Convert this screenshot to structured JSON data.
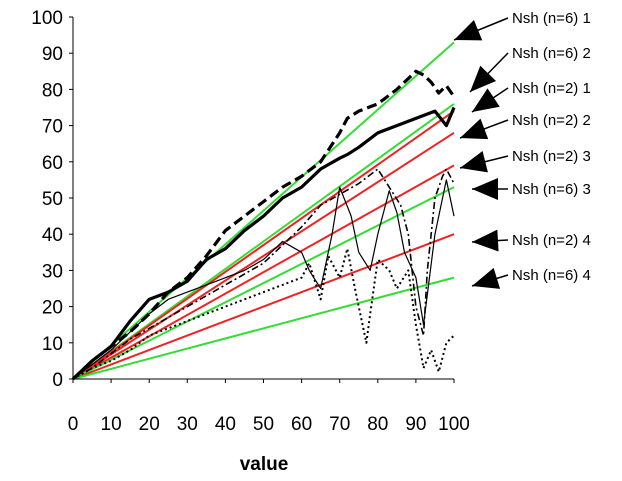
{
  "chart_data": {
    "type": "line",
    "title": "",
    "xlabel": "value",
    "ylabel": "",
    "xlim": [
      0,
      100
    ],
    "ylim": [
      0,
      100
    ],
    "xticks": [
      0,
      10,
      20,
      30,
      40,
      50,
      60,
      70,
      80,
      90,
      100
    ],
    "yticks": [
      0,
      10,
      20,
      30,
      40,
      50,
      60,
      70,
      80,
      90,
      100
    ],
    "grid": false,
    "colors": {
      "fit_green": "#33dd33",
      "fit_red": "#ee2222",
      "data": "#000000"
    },
    "fit_lines": [
      {
        "name": "Nsh (n=6) 1",
        "color": "fit_green",
        "slope": 0.93
      },
      {
        "name": "Nsh (n=6) 2",
        "color": "fit_green",
        "slope": 0.76
      },
      {
        "name": "Nsh (n=2) 1",
        "color": "fit_red",
        "slope": 0.74
      },
      {
        "name": "Nsh (n=2) 2",
        "color": "fit_red",
        "slope": 0.68
      },
      {
        "name": "Nsh (n=2) 3",
        "color": "fit_red",
        "slope": 0.59
      },
      {
        "name": "Nsh (n=6) 3",
        "color": "fit_green",
        "slope": 0.53
      },
      {
        "name": "Nsh (n=2) 4",
        "color": "fit_red",
        "slope": 0.4
      },
      {
        "name": "Nsh (n=6) 4",
        "color": "fit_green",
        "slope": 0.28
      }
    ],
    "series": [
      {
        "style": "thick-dash",
        "x": [
          0,
          5,
          10,
          15,
          20,
          25,
          30,
          35,
          40,
          45,
          50,
          55,
          60,
          65,
          70,
          72,
          75,
          80,
          85,
          88,
          90,
          92,
          94,
          96,
          98,
          100
        ],
        "y": [
          0,
          5,
          9,
          13,
          18,
          24,
          28,
          34,
          41,
          45,
          49,
          53,
          56,
          60,
          68,
          72,
          74,
          76,
          80,
          83,
          85,
          84,
          82,
          79,
          81,
          78
        ]
      },
      {
        "style": "thick-solid",
        "x": [
          0,
          5,
          10,
          15,
          20,
          25,
          30,
          35,
          40,
          45,
          50,
          55,
          60,
          65,
          70,
          72,
          75,
          80,
          85,
          90,
          95,
          98,
          100
        ],
        "y": [
          0,
          5,
          9,
          16,
          22,
          24,
          27,
          33,
          36,
          41,
          45,
          50,
          53,
          58,
          61,
          62,
          64,
          68,
          70,
          72,
          74,
          70,
          75
        ]
      },
      {
        "style": "thin-dashdot",
        "x": [
          0,
          5,
          10,
          15,
          20,
          25,
          30,
          35,
          40,
          45,
          50,
          55,
          60,
          65,
          70,
          75,
          80,
          83,
          86,
          88,
          90,
          92,
          93,
          95,
          97,
          98,
          100
        ],
        "y": [
          0,
          3,
          7,
          11,
          14,
          17,
          20,
          23,
          26,
          29,
          32,
          37,
          42,
          48,
          51,
          54,
          58,
          53,
          48,
          40,
          20,
          12,
          30,
          50,
          56,
          58,
          54
        ]
      },
      {
        "style": "thin-solid",
        "x": [
          0,
          5,
          10,
          15,
          20,
          25,
          30,
          35,
          40,
          45,
          50,
          55,
          60,
          62,
          65,
          68,
          70,
          73,
          75,
          78,
          80,
          83,
          85,
          87,
          90,
          92,
          95,
          98,
          100
        ],
        "y": [
          0,
          4,
          8,
          13,
          18,
          22,
          24,
          26,
          28,
          30,
          33,
          38,
          35,
          30,
          25,
          40,
          53,
          45,
          35,
          30,
          40,
          52,
          46,
          35,
          28,
          15,
          40,
          55,
          45
        ]
      },
      {
        "style": "dotted",
        "x": [
          0,
          5,
          10,
          15,
          20,
          25,
          30,
          35,
          40,
          45,
          50,
          55,
          60,
          62,
          65,
          67,
          70,
          72,
          74,
          77,
          78,
          80,
          83,
          85,
          88,
          90,
          92,
          94,
          96,
          98,
          100
        ],
        "y": [
          0,
          3,
          5,
          8,
          12,
          14,
          16,
          18,
          20,
          22,
          24,
          26,
          28,
          32,
          22,
          34,
          28,
          36,
          25,
          10,
          18,
          33,
          30,
          25,
          30,
          15,
          3,
          8,
          2,
          10,
          12
        ]
      }
    ]
  },
  "annotations": [
    {
      "text": "Nsh (n=6) 1",
      "slope_ref": 0
    },
    {
      "text": "Nsh (n=6) 2",
      "slope_ref": 1
    },
    {
      "text": "Nsh (n=2) 1",
      "slope_ref": 2
    },
    {
      "text": "Nsh (n=2) 2",
      "slope_ref": 3
    },
    {
      "text": "Nsh (n=2) 3",
      "slope_ref": 4
    },
    {
      "text": "Nsh (n=6) 3",
      "slope_ref": 5
    },
    {
      "text": "Nsh (n=2) 4",
      "slope_ref": 6
    },
    {
      "text": "Nsh (n=6) 4",
      "slope_ref": 7
    }
  ]
}
